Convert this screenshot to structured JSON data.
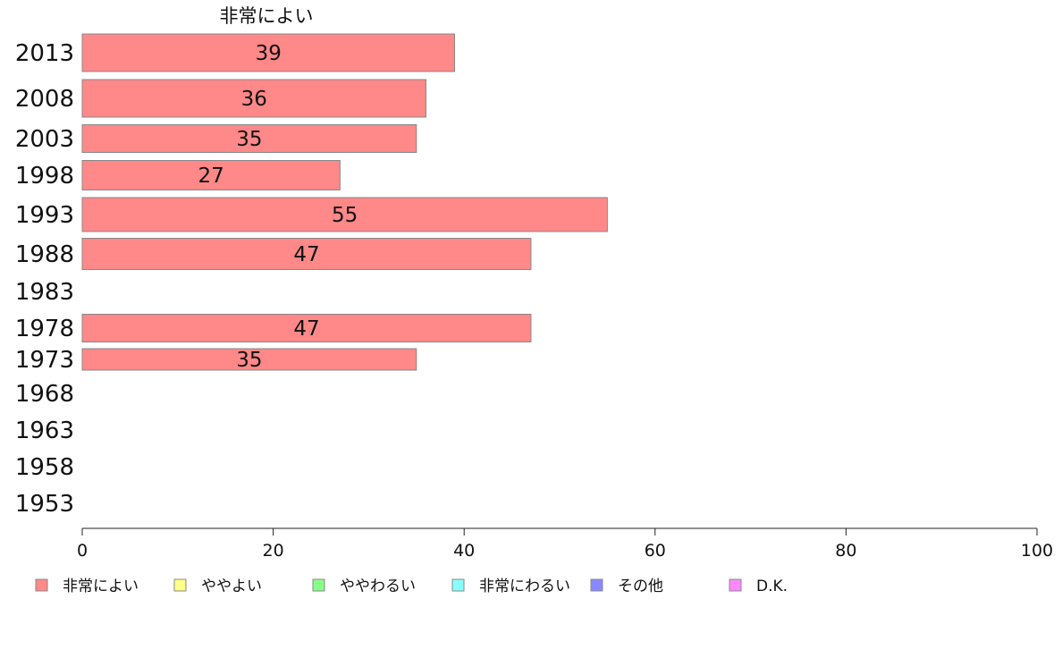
{
  "chart_data": {
    "type": "bar",
    "orientation": "horizontal",
    "column_title": "非常によい",
    "categories": [
      "2013",
      "2008",
      "2003",
      "1998",
      "1993",
      "1988",
      "1983",
      "1978",
      "1973",
      "1968",
      "1963",
      "1958",
      "1953"
    ],
    "series": [
      {
        "name": "非常によい",
        "color": "#ff8888",
        "values": [
          39,
          36,
          35,
          27,
          55,
          47,
          null,
          47,
          35,
          null,
          null,
          null,
          null
        ]
      }
    ],
    "display_values": [
      39,
      36,
      35,
      27,
      55,
      47,
      null,
      47,
      35,
      null,
      null,
      null,
      null
    ],
    "xlim": [
      0,
      100
    ],
    "xticks": [
      0,
      20,
      40,
      60,
      80,
      100
    ],
    "legend": {
      "placement": "bottom",
      "entries": [
        {
          "label": "非常によい",
          "color": "#ff8888"
        },
        {
          "label": "ややよい",
          "color": "#ffff88"
        },
        {
          "label": "ややわるい",
          "color": "#88ff88"
        },
        {
          "label": "非常にわるい",
          "color": "#88ffff"
        },
        {
          "label": "その他",
          "color": "#8888ff"
        },
        {
          "label": "D.K.",
          "color": "#ff88ff"
        }
      ]
    }
  }
}
